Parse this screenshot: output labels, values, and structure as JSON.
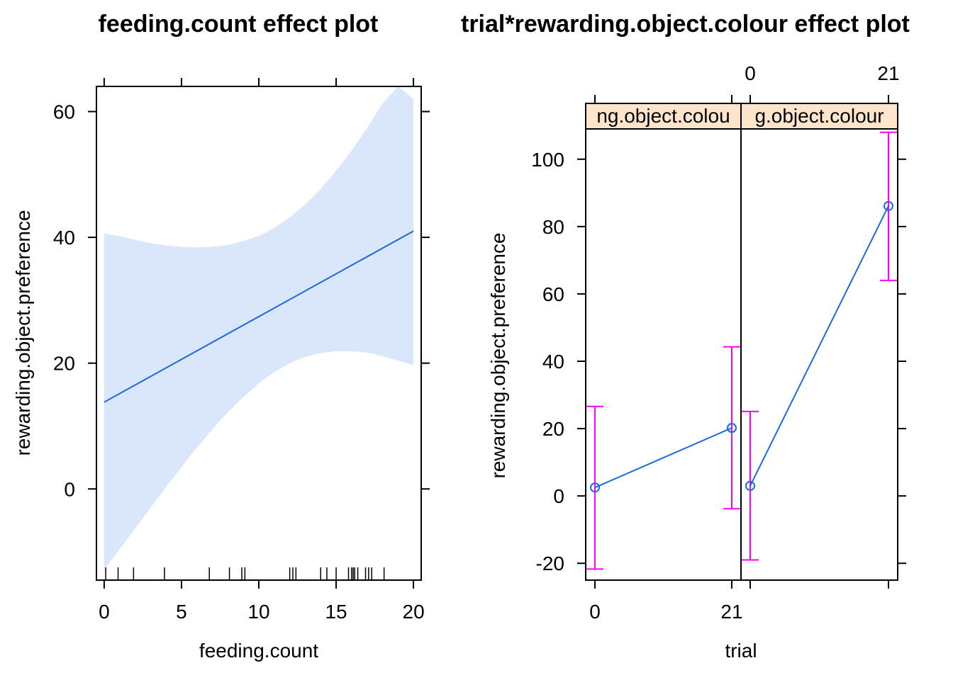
{
  "chart_data": [
    {
      "type": "line",
      "title": "feeding.count effect plot",
      "xlabel": "feeding.count",
      "ylabel": "rewarding.object.preference",
      "xlim": [
        -0.5,
        20.5
      ],
      "ylim": [
        -14.5,
        64
      ],
      "x_ticks": [
        0,
        5,
        10,
        15,
        20
      ],
      "y_ticks": [
        0,
        20,
        40,
        60
      ],
      "x_tick_labels": [
        "0",
        "5",
        "10",
        "15",
        "20"
      ],
      "y_tick_labels": [
        "0",
        "20",
        "40",
        "60"
      ],
      "series": [
        {
          "x": [
            0,
            20
          ],
          "y": [
            13.8,
            41.0
          ]
        }
      ],
      "confidence_band": {
        "x": [
          0,
          1,
          2,
          3,
          4,
          5,
          6,
          7,
          8,
          9,
          10,
          11,
          12,
          13,
          14,
          15,
          16,
          17,
          18,
          19,
          20
        ],
        "lower": [
          -12.8,
          -9.6,
          -6.3,
          -3.0,
          0.3,
          3.5,
          6.6,
          9.5,
          12.2,
          14.6,
          16.8,
          18.6,
          20.0,
          21.0,
          21.6,
          21.9,
          21.9,
          21.7,
          21.1,
          20.4,
          19.7
        ],
        "upper": [
          40.6,
          40.2,
          39.6,
          39.1,
          38.7,
          38.5,
          38.4,
          38.5,
          38.8,
          39.4,
          40.2,
          41.5,
          43.2,
          45.2,
          47.7,
          50.6,
          53.8,
          57.4,
          61.3,
          65.4,
          62.0
        ]
      },
      "rug": [
        0.1,
        0.9,
        1.9,
        3.9,
        6.8,
        8.1,
        8.9,
        9.1,
        12.0,
        12.2,
        12.4,
        14.0,
        14.4,
        15.0,
        15.8,
        16.0,
        16.1,
        16.2,
        16.4,
        16.9,
        17.1,
        17.3,
        18.1
      ],
      "colors": {
        "line": "#1a6ae0",
        "band": "#d9e6fb",
        "rug": "#000000"
      },
      "grid": false
    },
    {
      "type": "line",
      "title": "trial*rewarding.object.colour effect plot",
      "xlabel": "trial",
      "ylabel": "rewarding.object.preference",
      "categories": [
        "0",
        "21"
      ],
      "ylim": [
        -25,
        109
      ],
      "y_ticks": [
        -20,
        0,
        20,
        40,
        60,
        80,
        100
      ],
      "y_tick_labels": [
        "-20",
        "0",
        "20",
        "40",
        "60",
        "80",
        "100"
      ],
      "panels": [
        {
          "strip_label": "ng.object.colou",
          "values": [
            2.5,
            20.2
          ],
          "lower": [
            -21.7,
            -3.8
          ],
          "upper": [
            26.6,
            44.3
          ]
        },
        {
          "strip_label": "g.object.colour",
          "values": [
            3.0,
            86.1
          ],
          "lower": [
            -19.0,
            64.0
          ],
          "upper": [
            25.1,
            108.0
          ]
        }
      ],
      "colors": {
        "line": "#1a6ae0",
        "error_bar": "#ff00ff",
        "strip": "#ffe5cc"
      },
      "grid": false
    }
  ]
}
